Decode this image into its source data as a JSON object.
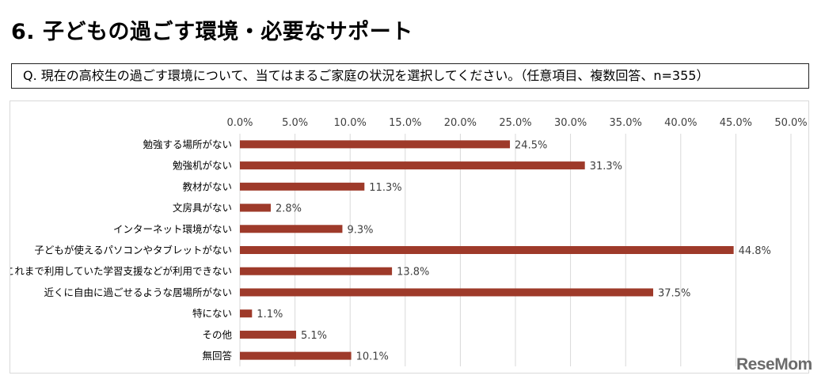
{
  "page": {
    "title": "6. 子どもの過ごす環境・必要なサポート",
    "question": "Q. 現在の高校生の過ごす環境について、当てはまるご家庭の状況を選択してください。（任意項目、複数回答、n=355）"
  },
  "watermark": "ReseMom",
  "chart_data": {
    "type": "bar",
    "orientation": "horizontal",
    "title": "",
    "xlabel": "",
    "ylabel": "",
    "xlim": [
      0,
      50
    ],
    "x_ticks": [
      0,
      5,
      10,
      15,
      20,
      25,
      30,
      35,
      40,
      45,
      50
    ],
    "x_tick_labels": [
      "0.0%",
      "5.0%",
      "10.0%",
      "15.0%",
      "20.0%",
      "25.0%",
      "30.0%",
      "35.0%",
      "40.0%",
      "45.0%",
      "50.0%"
    ],
    "axis_position": "top",
    "grid": true,
    "legend": "none",
    "bar_color": "#9e3a2a",
    "categories": [
      "勉強する場所がない",
      "勉強机がない",
      "教材がない",
      "文房具がない",
      "インターネット環境がない",
      "子どもが使えるパソコンやタブレットがない",
      "これまで利用していた学習支援などが利用できない",
      "近くに自由に過ごせるような居場所がない",
      "特にない",
      "その他",
      "無回答"
    ],
    "values": [
      24.5,
      31.3,
      11.3,
      2.8,
      9.3,
      44.8,
      13.8,
      37.5,
      1.1,
      5.1,
      10.1
    ],
    "data_labels": [
      "24.5%",
      "31.3%",
      "11.3%",
      "2.8%",
      "9.3%",
      "44.8%",
      "13.8%",
      "37.5%",
      "1.1%",
      "5.1%",
      "10.1%"
    ]
  }
}
